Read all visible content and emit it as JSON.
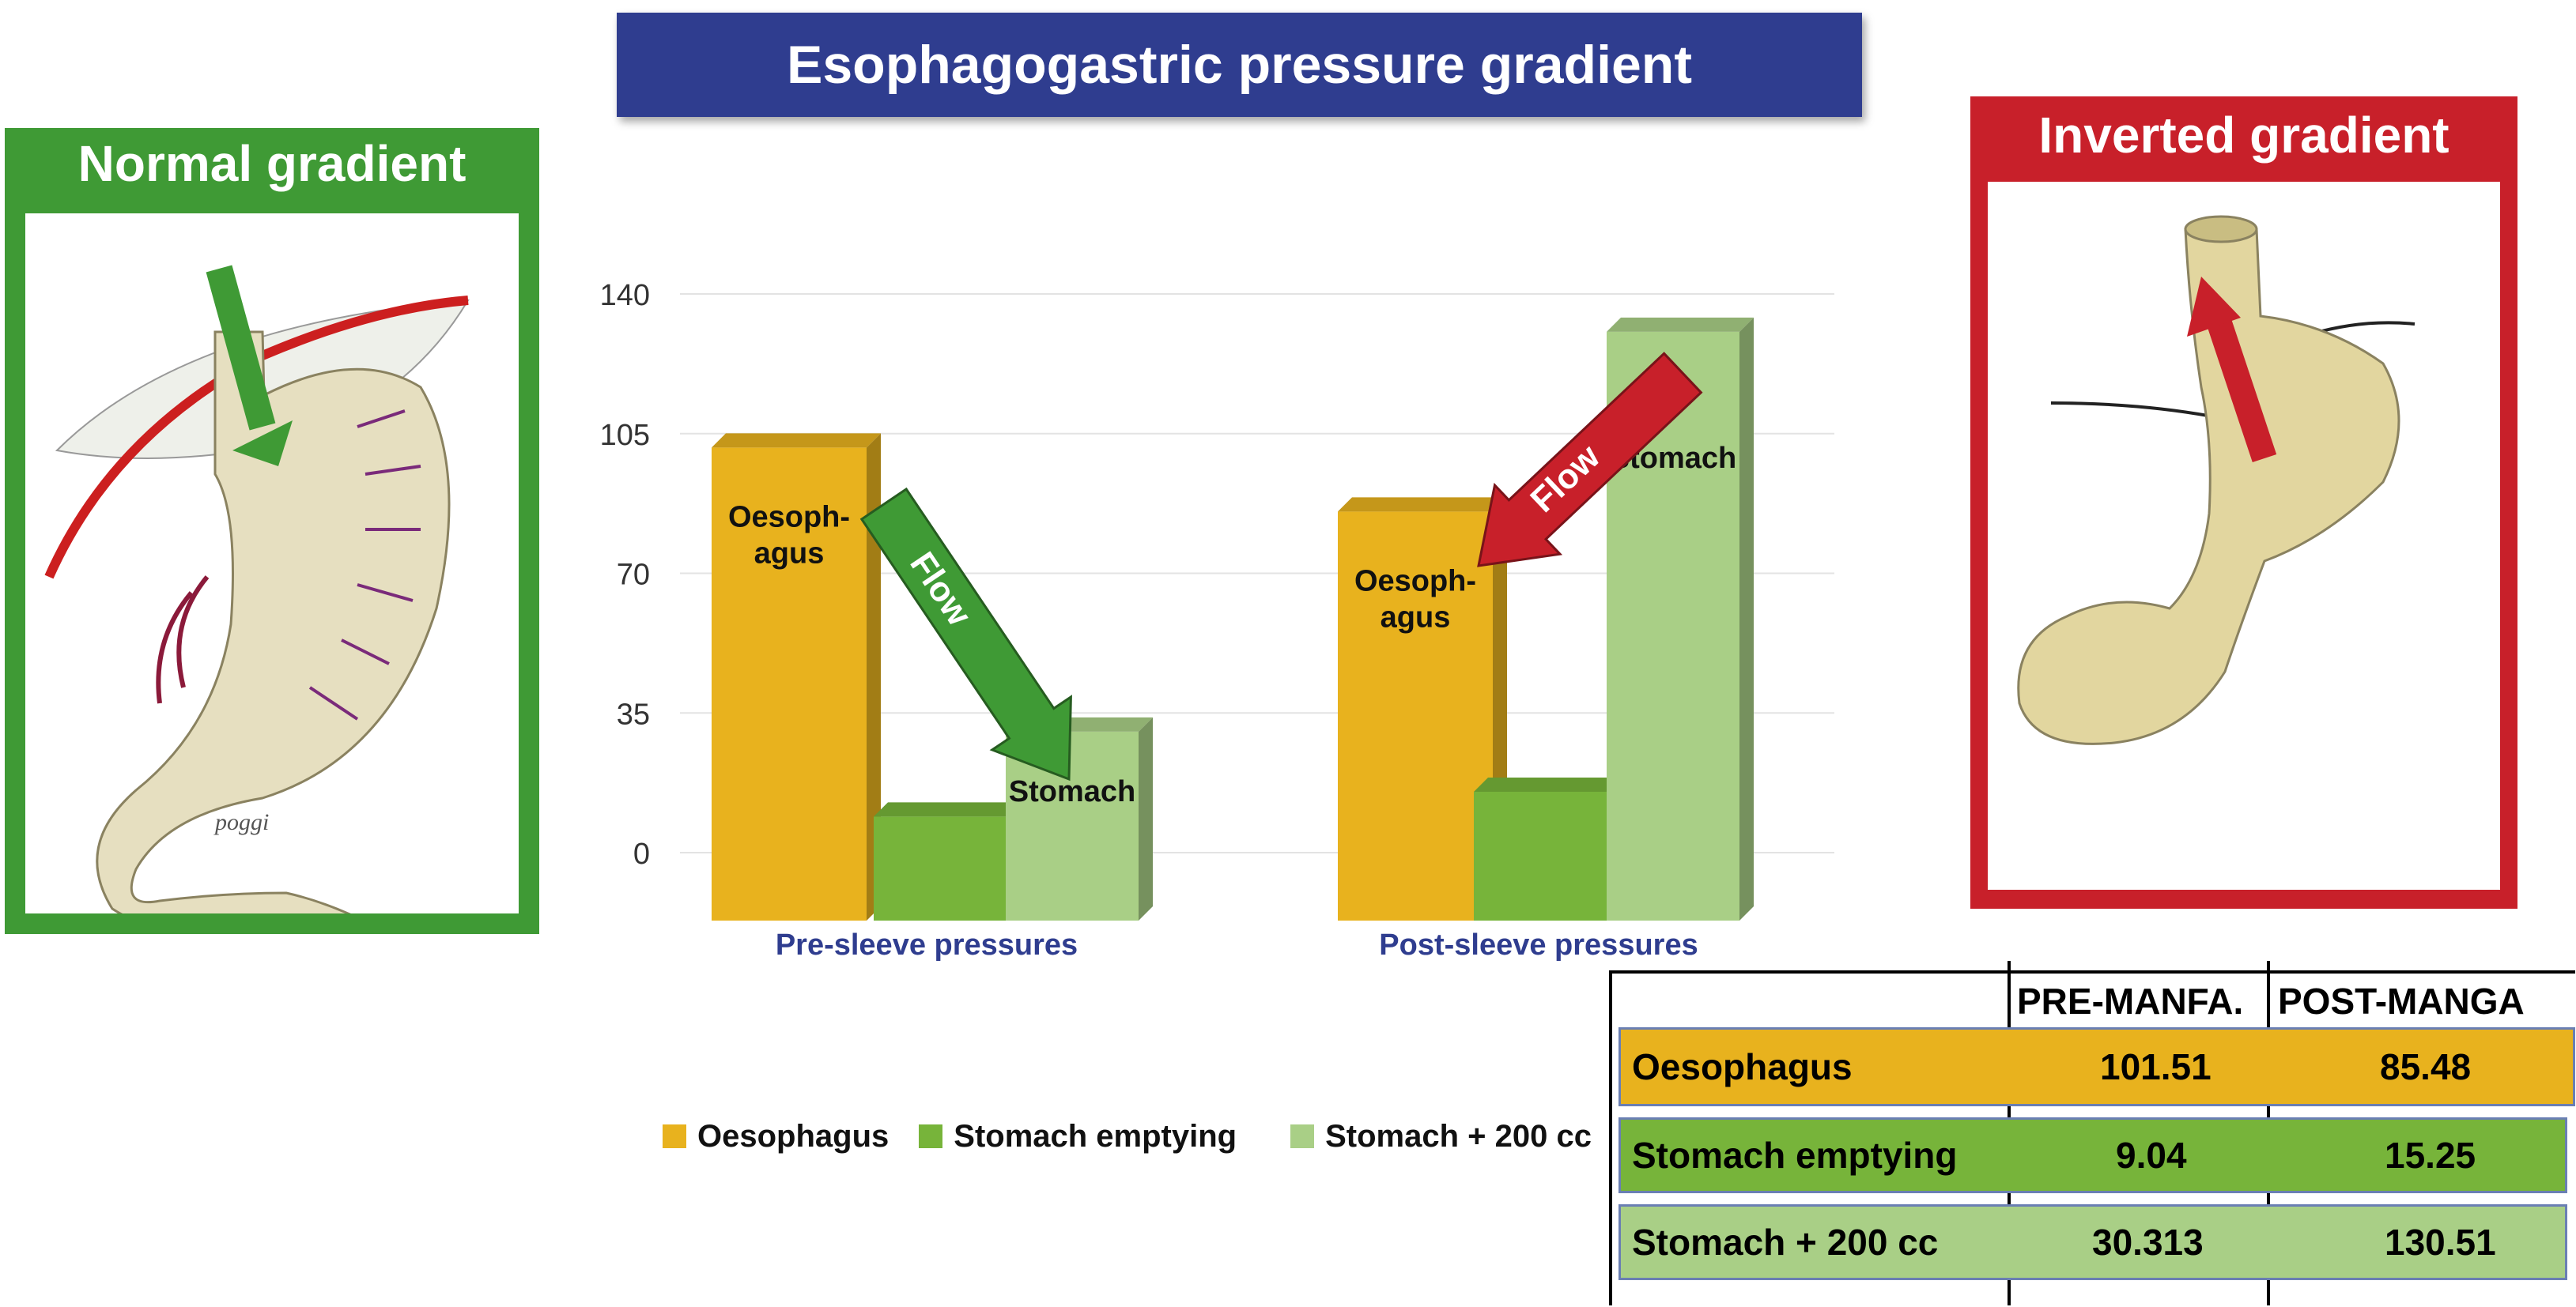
{
  "banner_title": "Esophagogastric pressure gradient",
  "normal_panel": {
    "title": "Normal gradient",
    "color": "#3f9a35",
    "signature": "poggi"
  },
  "inverted_panel": {
    "title": "Inverted gradient",
    "color": "#c8202a"
  },
  "colors": {
    "oesophagus": "#e8b21e",
    "stomach_emptying": "#77b43a",
    "stomach_200": "#a9cf86",
    "flow_green": "#3f9a35",
    "flow_red": "#c8202a",
    "group_label": "#2f3d8f"
  },
  "chart_data": {
    "type": "bar",
    "style": "3d",
    "y_ticks": [
      "140",
      "105",
      "70",
      "35",
      "0"
    ],
    "ylim": [
      0,
      140
    ],
    "grid": true,
    "legend_position": "bottom",
    "categories": [
      "Pre-sleeve pressures",
      "Post-sleeve pressures"
    ],
    "series": [
      {
        "name": "Oesophagus",
        "values": [
          101.51,
          85.48
        ]
      },
      {
        "name": "Stomach emptying",
        "values": [
          9.04,
          15.25
        ]
      },
      {
        "name": "Stomach + 200 cc",
        "values": [
          30.313,
          130.51
        ]
      }
    ],
    "bar_labels": {
      "oesophagus_line1": "Oesoph-",
      "oesophagus_line2": "agus",
      "stomach": "Stomach"
    },
    "arrow_label": "Flow"
  },
  "legend": {
    "items": [
      {
        "label": "Oesophagus",
        "color": "#e8b21e"
      },
      {
        "label": "Stomach emptying",
        "color": "#77b43a"
      },
      {
        "label": "Stomach + 200 cc",
        "color": "#a9cf86"
      }
    ]
  },
  "table": {
    "headers": [
      "PRE-MANFA.",
      "POST-MANGA"
    ],
    "rows": [
      {
        "label": "Oesophagus",
        "pre": "101.51",
        "post": "85.48",
        "color": "#e8b21e"
      },
      {
        "label": "Stomach emptying",
        "pre": "9.04",
        "post": "15.25",
        "color": "#77b43a"
      },
      {
        "label": "Stomach + 200 cc",
        "pre": "30.313",
        "post": "130.51",
        "color": "#a9cf86"
      }
    ]
  }
}
